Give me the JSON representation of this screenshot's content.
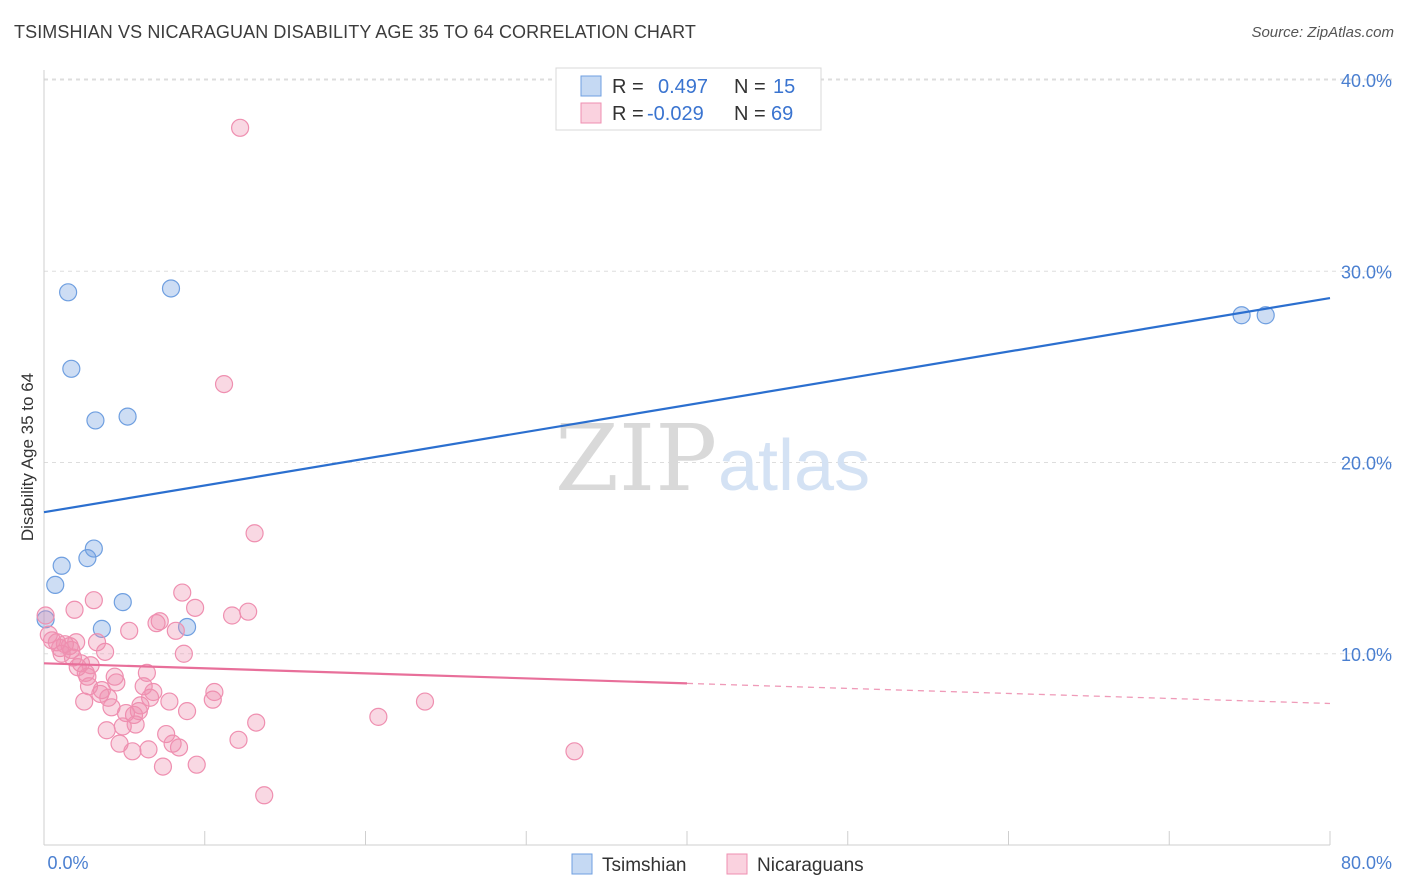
{
  "header": {
    "title": "TSIMSHIAN VS NICARAGUAN DISABILITY AGE 35 TO 64 CORRELATION CHART",
    "source": "Source: ZipAtlas.com"
  },
  "watermark": {
    "zip": "ZIP",
    "atlas": "atlas"
  },
  "colors": {
    "tsimshian": "#6f9fe0",
    "tsimshian_line": "#2b6fcf",
    "nicaraguan": "#ef8fb0",
    "nicaraguan_line": "#e86f9a",
    "grid": "#dddddd",
    "axis_text": "#4a7fd0"
  },
  "chart_data": {
    "type": "scatter",
    "title": "TSIMSHIAN VS NICARAGUAN DISABILITY AGE 35 TO 64 CORRELATION CHART",
    "xlabel": "",
    "ylabel": "Disability Age 35 to 64",
    "xlim": [
      0,
      80
    ],
    "ylim": [
      0,
      40
    ],
    "x_tick_labels": [
      "0.0%",
      "80.0%"
    ],
    "y_ticks": [
      10,
      20,
      30,
      40
    ],
    "y_tick_labels": [
      "10.0%",
      "20.0%",
      "30.0%",
      "40.0%"
    ],
    "legend": [
      {
        "r_label": "R =",
        "r_value": "0.497",
        "n_label": "N =",
        "n_value": "15"
      },
      {
        "r_label": "R =",
        "r_value": "-0.029",
        "n_label": "N =",
        "n_value": "69"
      }
    ],
    "series": [
      {
        "name": "Tsimshian",
        "trend": {
          "x": [
            0,
            80
          ],
          "y": [
            17.4,
            28.6
          ],
          "solid_to": 80
        },
        "points": [
          [
            0.1,
            11.8
          ],
          [
            0.7,
            13.6
          ],
          [
            1.1,
            14.6
          ],
          [
            1.5,
            28.9
          ],
          [
            1.7,
            24.9
          ],
          [
            2.7,
            15.0
          ],
          [
            3.1,
            15.5
          ],
          [
            3.2,
            22.2
          ],
          [
            4.9,
            12.7
          ],
          [
            5.2,
            22.4
          ],
          [
            3.6,
            11.3
          ],
          [
            7.9,
            29.1
          ],
          [
            8.9,
            11.4
          ],
          [
            74.5,
            27.7
          ],
          [
            76.0,
            27.7
          ]
        ]
      },
      {
        "name": "Nicaraguans",
        "trend": {
          "x": [
            0,
            80
          ],
          "y": [
            9.5,
            7.4
          ],
          "solid_to": 40
        },
        "points": [
          [
            0.1,
            12.0
          ],
          [
            0.3,
            11.0
          ],
          [
            0.5,
            10.7
          ],
          [
            0.8,
            10.6
          ],
          [
            1.0,
            10.3
          ],
          [
            1.1,
            10.0
          ],
          [
            1.3,
            10.5
          ],
          [
            1.6,
            10.4
          ],
          [
            1.7,
            10.2
          ],
          [
            1.8,
            9.8
          ],
          [
            1.9,
            12.3
          ],
          [
            2.0,
            10.6
          ],
          [
            2.1,
            9.3
          ],
          [
            2.3,
            9.5
          ],
          [
            2.5,
            7.5
          ],
          [
            2.6,
            9.0
          ],
          [
            2.7,
            8.8
          ],
          [
            2.8,
            8.3
          ],
          [
            2.9,
            9.4
          ],
          [
            3.1,
            12.8
          ],
          [
            3.3,
            10.6
          ],
          [
            3.5,
            7.9
          ],
          [
            3.6,
            8.1
          ],
          [
            3.8,
            10.1
          ],
          [
            3.9,
            6.0
          ],
          [
            4.0,
            7.7
          ],
          [
            4.2,
            7.2
          ],
          [
            4.4,
            8.8
          ],
          [
            4.5,
            8.5
          ],
          [
            4.7,
            5.3
          ],
          [
            4.9,
            6.2
          ],
          [
            5.1,
            6.9
          ],
          [
            5.3,
            11.2
          ],
          [
            5.5,
            4.9
          ],
          [
            5.6,
            6.8
          ],
          [
            5.7,
            6.3
          ],
          [
            5.9,
            7.0
          ],
          [
            6.0,
            7.3
          ],
          [
            6.2,
            8.3
          ],
          [
            6.4,
            9.0
          ],
          [
            6.5,
            5.0
          ],
          [
            6.6,
            7.7
          ],
          [
            6.8,
            8.0
          ],
          [
            7.0,
            11.6
          ],
          [
            7.2,
            11.7
          ],
          [
            7.4,
            4.1
          ],
          [
            7.6,
            5.8
          ],
          [
            7.8,
            7.5
          ],
          [
            8.0,
            5.3
          ],
          [
            8.2,
            11.2
          ],
          [
            8.4,
            5.1
          ],
          [
            8.6,
            13.2
          ],
          [
            8.7,
            10.0
          ],
          [
            8.9,
            7.0
          ],
          [
            9.4,
            12.4
          ],
          [
            9.5,
            4.2
          ],
          [
            10.5,
            7.6
          ],
          [
            10.6,
            8.0
          ],
          [
            11.2,
            24.1
          ],
          [
            11.7,
            12.0
          ],
          [
            12.1,
            5.5
          ],
          [
            12.2,
            37.5
          ],
          [
            12.7,
            12.2
          ],
          [
            13.1,
            16.3
          ],
          [
            13.2,
            6.4
          ],
          [
            13.7,
            2.6
          ],
          [
            20.8,
            6.7
          ],
          [
            23.7,
            7.5
          ],
          [
            33.0,
            4.9
          ]
        ]
      }
    ]
  }
}
